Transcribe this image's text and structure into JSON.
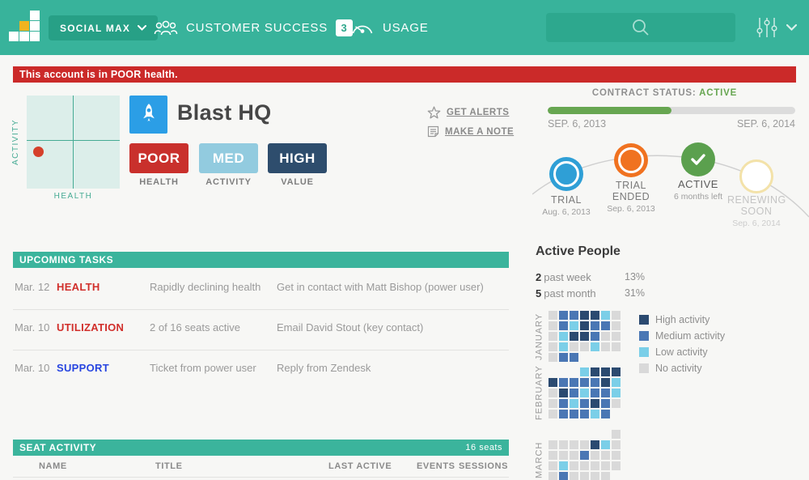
{
  "nav": {
    "brand": "SOCIAL MAX",
    "menu": [
      {
        "label": "CUSTOMER SUCCESS",
        "badge": "3"
      },
      {
        "label": "USAGE"
      }
    ],
    "colors": {
      "bar": "#38b39b",
      "brand_button": "#27a086"
    }
  },
  "alert": {
    "text": "This account is in POOR health.",
    "color": "#cb2a29"
  },
  "account": {
    "name": "Blast HQ",
    "quadrant": {
      "y_label": "ACTIVITY",
      "x_label": "HEALTH"
    },
    "scores": [
      {
        "value": "POOR",
        "label": "HEALTH",
        "color": "#c9302c"
      },
      {
        "value": "MED",
        "label": "ACTIVITY",
        "color": "#92cbdf"
      },
      {
        "value": "HIGH",
        "label": "VALUE",
        "color": "#2e4d6d"
      }
    ],
    "links": [
      {
        "label": "GET ALERTS"
      },
      {
        "label": "MAKE A NOTE"
      }
    ]
  },
  "contract": {
    "status_label": "CONTRACT STATUS:",
    "status_value": "ACTIVE",
    "status_color": "#67a651",
    "progress_pct": 50,
    "start_date": "SEP. 6, 2013",
    "end_date": "SEP. 6, 2014",
    "milestones": [
      {
        "title": "TRIAL",
        "subtitle": "Aug. 6, 2013",
        "color": "#2f9fd6"
      },
      {
        "title": "TRIAL ENDED",
        "subtitle": "Sep. 6, 2013",
        "color": "#f07220"
      },
      {
        "title": "ACTIVE",
        "subtitle": "6 months left",
        "color": "#5ba04e"
      },
      {
        "title": "RENEWING SOON",
        "subtitle": "Sep. 6, 2014",
        "color": "#f3e2a9"
      }
    ]
  },
  "active_people": {
    "title": "Active People",
    "stats": [
      {
        "count": "2",
        "label": "past week",
        "pct": "13%"
      },
      {
        "count": "5",
        "label": "past month",
        "pct": "31%"
      }
    ],
    "legend": [
      {
        "key": "H",
        "label": "High activity",
        "color": "#2b4a70"
      },
      {
        "key": "M",
        "label": "Medium activity",
        "color": "#4a77b4"
      },
      {
        "key": "L",
        "label": "Low activity",
        "color": "#7bcfe8"
      },
      {
        "key": "N",
        "label": "No activity",
        "color": "#d9d9d9"
      }
    ],
    "months": [
      {
        "name": "JANUARY",
        "rows": [
          "NMMHHLN",
          "NMLHMMN",
          "NLHHMNN",
          "NLNNLNN",
          "NMM...."
        ]
      },
      {
        "name": "FEBRUARY",
        "rows": [
          "...LHHH",
          "HMMMMHL",
          "NHMLMML",
          "NMLMHMN",
          "NMMMLM."
        ]
      },
      {
        "name": "MARCH",
        "rows": [
          "......N",
          "NNNNHLN",
          "NNNMNNN",
          "NLNNNNN",
          "NMNNNN."
        ]
      }
    ]
  },
  "tasks": {
    "header": "UPCOMING TASKS",
    "rows": [
      {
        "date": "Mar. 12",
        "category": "HEALTH",
        "category_color": "#d12f2b",
        "description": "Rapidly declining health",
        "action": "Get in contact with Matt Bishop (power user)"
      },
      {
        "date": "Mar. 10",
        "category": "UTILIZATION",
        "category_color": "#d12f2b",
        "description": "2 of 16 seats active",
        "action": "Email David Stout (key contact)"
      },
      {
        "date": "Mar. 10",
        "category": "SUPPORT",
        "category_color": "#2745e0",
        "description": "Ticket from power user",
        "action": "Reply from Zendesk"
      }
    ]
  },
  "seats": {
    "header": "SEAT ACTIVITY",
    "count": "16 seats",
    "columns": [
      "NAME",
      "TITLE",
      "LAST ACTIVE",
      "EVENTS",
      "SESSIONS"
    ]
  }
}
